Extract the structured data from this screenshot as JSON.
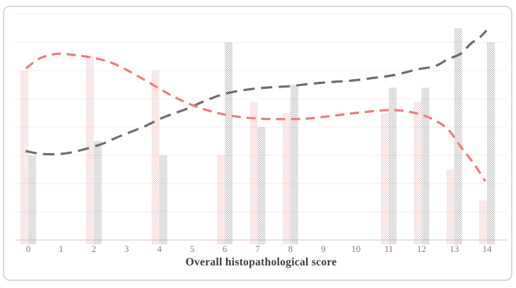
{
  "figure": {
    "border_color": "#d9d9d9",
    "background_color": "#ffffff",
    "gridline_color": "#f7ecec",
    "axis_line_color": "#d9d0d0"
  },
  "chart_data": {
    "type": "bar",
    "title": "",
    "xlabel": "Overall histopathological score",
    "ylabel": "",
    "categories": [
      "0",
      "1",
      "2",
      "3",
      "4",
      "5",
      "6",
      "7",
      "8",
      "9",
      "10",
      "11",
      "12",
      "13",
      "14"
    ],
    "ylim": [
      0,
      8
    ],
    "grid": true,
    "y_axis_labels_visible": false,
    "legend": "none",
    "series": [
      {
        "name": "pink-dotted-bars",
        "style": "stipple-dot-fill",
        "color": "#ecaaac",
        "values": [
          6.0,
          null,
          6.5,
          null,
          6.0,
          null,
          3.0,
          4.9,
          4.5,
          null,
          null,
          4.5,
          4.9,
          2.5,
          1.4
        ]
      },
      {
        "name": "gray-dotted-bars",
        "style": "stipple-dot-fill",
        "color": "#8f8f8f",
        "values": [
          3.0,
          null,
          3.5,
          null,
          3.0,
          null,
          7.0,
          4.0,
          5.5,
          null,
          null,
          5.4,
          5.4,
          7.5,
          7.0
        ]
      }
    ],
    "curves": [
      {
        "name": "gray-dashed-trend",
        "color": "#6d6d6d",
        "dash": [
          16,
          9
        ],
        "points": [
          [
            -0.08,
            3.15
          ],
          [
            0.4,
            3.05
          ],
          [
            1.0,
            3.05
          ],
          [
            1.5,
            3.15
          ],
          [
            2.2,
            3.38
          ],
          [
            2.8,
            3.68
          ],
          [
            3.5,
            4.0
          ],
          [
            4.1,
            4.33
          ],
          [
            4.8,
            4.63
          ],
          [
            5.4,
            4.93
          ],
          [
            6.0,
            5.18
          ],
          [
            6.7,
            5.33
          ],
          [
            7.3,
            5.4
          ],
          [
            8.0,
            5.45
          ],
          [
            8.6,
            5.53
          ],
          [
            9.3,
            5.6
          ],
          [
            9.9,
            5.65
          ],
          [
            10.6,
            5.75
          ],
          [
            11.2,
            5.85
          ],
          [
            11.9,
            6.05
          ],
          [
            12.4,
            6.15
          ],
          [
            12.8,
            6.4
          ],
          [
            13.2,
            6.6
          ],
          [
            13.5,
            6.95
          ],
          [
            13.8,
            7.2
          ],
          [
            13.98,
            7.42
          ]
        ]
      },
      {
        "name": "pink-dashed-trend",
        "color": "#ed7d7e",
        "dash": [
          13,
          8
        ],
        "points": [
          [
            -0.07,
            6.08
          ],
          [
            0.3,
            6.4
          ],
          [
            0.65,
            6.55
          ],
          [
            1.0,
            6.6
          ],
          [
            1.4,
            6.55
          ],
          [
            2.0,
            6.45
          ],
          [
            2.6,
            6.25
          ],
          [
            3.2,
            5.9
          ],
          [
            3.8,
            5.5
          ],
          [
            4.4,
            5.1
          ],
          [
            5.0,
            4.78
          ],
          [
            5.6,
            4.55
          ],
          [
            6.2,
            4.4
          ],
          [
            7.0,
            4.3
          ],
          [
            7.8,
            4.28
          ],
          [
            8.5,
            4.3
          ],
          [
            9.3,
            4.4
          ],
          [
            10.0,
            4.5
          ],
          [
            10.7,
            4.58
          ],
          [
            11.2,
            4.6
          ],
          [
            11.8,
            4.5
          ],
          [
            12.3,
            4.3
          ],
          [
            12.8,
            3.93
          ],
          [
            13.2,
            3.3
          ],
          [
            13.6,
            2.7
          ],
          [
            13.95,
            2.08
          ]
        ]
      }
    ]
  }
}
